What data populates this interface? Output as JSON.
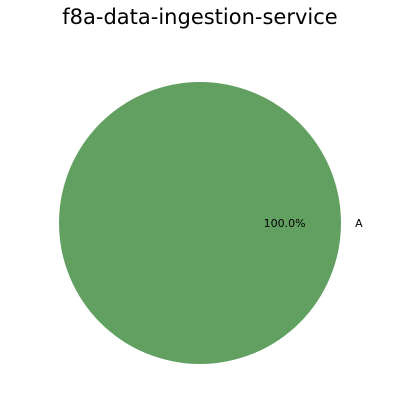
{
  "chart_data": {
    "type": "pie",
    "title": "f8a-data-ingestion-service",
    "slices": [
      {
        "label": "A",
        "value": 100.0,
        "pct_label": "100.0%",
        "color": "#62a062"
      }
    ]
  }
}
